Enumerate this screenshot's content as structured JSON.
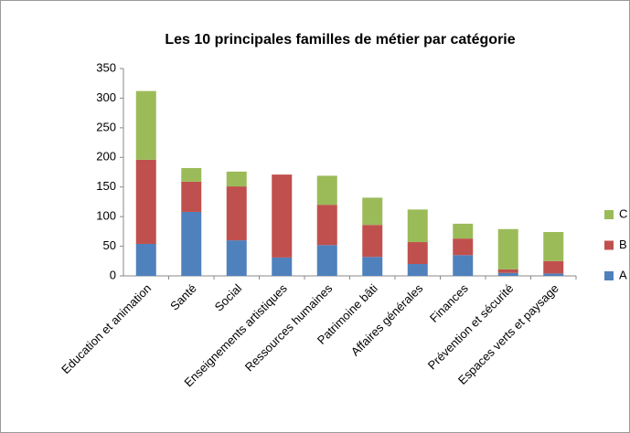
{
  "chart_data": {
    "type": "stacked_bar",
    "title": "Les 10 principales familles de métier par catégorie",
    "categories": [
      "Education et animation",
      "Santé",
      "Social",
      "Enseignements artistiques",
      "Ressources humaines",
      "Patrimoine bâti",
      "Affaires générales",
      "Finances",
      "Prévention et sécurité",
      "Espaces verts et paysage"
    ],
    "series": [
      {
        "name": "A",
        "color": "#4f81bd",
        "values": [
          54,
          108,
          60,
          31,
          52,
          32,
          20,
          35,
          5,
          4
        ]
      },
      {
        "name": "B",
        "color": "#c0504d",
        "values": [
          142,
          51,
          91,
          140,
          68,
          54,
          37,
          28,
          6,
          21
        ]
      },
      {
        "name": "C",
        "color": "#9bbb59",
        "values": [
          116,
          23,
          25,
          0,
          49,
          46,
          55,
          25,
          68,
          49
        ]
      }
    ],
    "ylim": [
      0,
      350
    ],
    "yticks": [
      0,
      50,
      100,
      150,
      200,
      250,
      300,
      350
    ],
    "grid": false,
    "legend": "right"
  }
}
